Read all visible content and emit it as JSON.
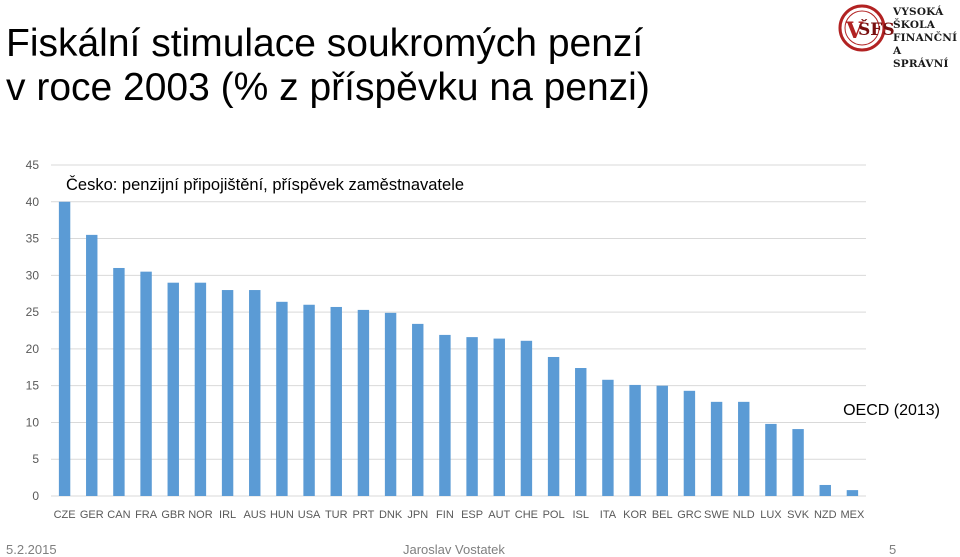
{
  "header": {
    "title_line1": "Fiskální stimulace soukromých penzí",
    "title_line2": "v roce 2003 (% z příspěvku na penzi)"
  },
  "logo": {
    "line1": "VYSOKÁ ŠKOLA",
    "line2": "FINANČNÍ",
    "line3": "A SPRÁVNÍ"
  },
  "chart_data": {
    "type": "bar",
    "subtitle": "Česko: penzijní připojištění, příspěvek zaměstnavatele",
    "source_note": "OECD (2013)",
    "categories": [
      "CZE",
      "GER",
      "CAN",
      "FRA",
      "GBR",
      "NOR",
      "IRL",
      "AUS",
      "HUN",
      "USA",
      "TUR",
      "PRT",
      "DNK",
      "JPN",
      "FIN",
      "ESP",
      "AUT",
      "CHE",
      "POL",
      "ISL",
      "ITA",
      "KOR",
      "BEL",
      "GRC",
      "SWE",
      "NLD",
      "LUX",
      "SVK",
      "NZD",
      "MEX"
    ],
    "values": [
      40,
      35.5,
      31,
      30.5,
      29,
      29,
      28,
      28,
      26.4,
      26,
      25.7,
      25.3,
      24.9,
      23.4,
      21.9,
      21.6,
      21.4,
      21.1,
      18.9,
      17.4,
      15.8,
      15.1,
      15,
      14.3,
      12.8,
      12.8,
      9.8,
      9.1,
      1.5,
      0.8
    ],
    "ylim": [
      0,
      45
    ],
    "yticks": [
      0,
      5,
      10,
      15,
      20,
      25,
      30,
      35,
      40,
      45
    ],
    "grid": true,
    "bar_color": "#5b9bd5",
    "grid_color": "#d9d9d9"
  },
  "footer": {
    "date": "5.2.2015",
    "author": "Jaroslav Vostatek",
    "page": "5"
  }
}
